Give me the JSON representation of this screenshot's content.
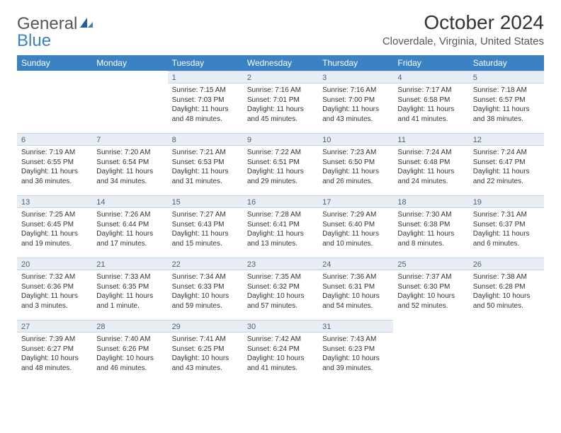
{
  "brand": {
    "word1": "General",
    "word2": "Blue"
  },
  "title": "October 2024",
  "location": "Cloverdale, Virginia, United States",
  "colors": {
    "header_bg": "#3b82c4",
    "header_text": "#ffffff",
    "daynum_bg": "#e8eef4",
    "daynum_text": "#4a6178",
    "body_text": "#333333",
    "page_bg": "#ffffff"
  },
  "day_names": [
    "Sunday",
    "Monday",
    "Tuesday",
    "Wednesday",
    "Thursday",
    "Friday",
    "Saturday"
  ],
  "weeks": [
    [
      null,
      null,
      {
        "n": "1",
        "sr": "Sunrise: 7:15 AM",
        "ss": "Sunset: 7:03 PM",
        "dl": "Daylight: 11 hours and 48 minutes."
      },
      {
        "n": "2",
        "sr": "Sunrise: 7:16 AM",
        "ss": "Sunset: 7:01 PM",
        "dl": "Daylight: 11 hours and 45 minutes."
      },
      {
        "n": "3",
        "sr": "Sunrise: 7:16 AM",
        "ss": "Sunset: 7:00 PM",
        "dl": "Daylight: 11 hours and 43 minutes."
      },
      {
        "n": "4",
        "sr": "Sunrise: 7:17 AM",
        "ss": "Sunset: 6:58 PM",
        "dl": "Daylight: 11 hours and 41 minutes."
      },
      {
        "n": "5",
        "sr": "Sunrise: 7:18 AM",
        "ss": "Sunset: 6:57 PM",
        "dl": "Daylight: 11 hours and 38 minutes."
      }
    ],
    [
      {
        "n": "6",
        "sr": "Sunrise: 7:19 AM",
        "ss": "Sunset: 6:55 PM",
        "dl": "Daylight: 11 hours and 36 minutes."
      },
      {
        "n": "7",
        "sr": "Sunrise: 7:20 AM",
        "ss": "Sunset: 6:54 PM",
        "dl": "Daylight: 11 hours and 34 minutes."
      },
      {
        "n": "8",
        "sr": "Sunrise: 7:21 AM",
        "ss": "Sunset: 6:53 PM",
        "dl": "Daylight: 11 hours and 31 minutes."
      },
      {
        "n": "9",
        "sr": "Sunrise: 7:22 AM",
        "ss": "Sunset: 6:51 PM",
        "dl": "Daylight: 11 hours and 29 minutes."
      },
      {
        "n": "10",
        "sr": "Sunrise: 7:23 AM",
        "ss": "Sunset: 6:50 PM",
        "dl": "Daylight: 11 hours and 26 minutes."
      },
      {
        "n": "11",
        "sr": "Sunrise: 7:24 AM",
        "ss": "Sunset: 6:48 PM",
        "dl": "Daylight: 11 hours and 24 minutes."
      },
      {
        "n": "12",
        "sr": "Sunrise: 7:24 AM",
        "ss": "Sunset: 6:47 PM",
        "dl": "Daylight: 11 hours and 22 minutes."
      }
    ],
    [
      {
        "n": "13",
        "sr": "Sunrise: 7:25 AM",
        "ss": "Sunset: 6:45 PM",
        "dl": "Daylight: 11 hours and 19 minutes."
      },
      {
        "n": "14",
        "sr": "Sunrise: 7:26 AM",
        "ss": "Sunset: 6:44 PM",
        "dl": "Daylight: 11 hours and 17 minutes."
      },
      {
        "n": "15",
        "sr": "Sunrise: 7:27 AM",
        "ss": "Sunset: 6:43 PM",
        "dl": "Daylight: 11 hours and 15 minutes."
      },
      {
        "n": "16",
        "sr": "Sunrise: 7:28 AM",
        "ss": "Sunset: 6:41 PM",
        "dl": "Daylight: 11 hours and 13 minutes."
      },
      {
        "n": "17",
        "sr": "Sunrise: 7:29 AM",
        "ss": "Sunset: 6:40 PM",
        "dl": "Daylight: 11 hours and 10 minutes."
      },
      {
        "n": "18",
        "sr": "Sunrise: 7:30 AM",
        "ss": "Sunset: 6:38 PM",
        "dl": "Daylight: 11 hours and 8 minutes."
      },
      {
        "n": "19",
        "sr": "Sunrise: 7:31 AM",
        "ss": "Sunset: 6:37 PM",
        "dl": "Daylight: 11 hours and 6 minutes."
      }
    ],
    [
      {
        "n": "20",
        "sr": "Sunrise: 7:32 AM",
        "ss": "Sunset: 6:36 PM",
        "dl": "Daylight: 11 hours and 3 minutes."
      },
      {
        "n": "21",
        "sr": "Sunrise: 7:33 AM",
        "ss": "Sunset: 6:35 PM",
        "dl": "Daylight: 11 hours and 1 minute."
      },
      {
        "n": "22",
        "sr": "Sunrise: 7:34 AM",
        "ss": "Sunset: 6:33 PM",
        "dl": "Daylight: 10 hours and 59 minutes."
      },
      {
        "n": "23",
        "sr": "Sunrise: 7:35 AM",
        "ss": "Sunset: 6:32 PM",
        "dl": "Daylight: 10 hours and 57 minutes."
      },
      {
        "n": "24",
        "sr": "Sunrise: 7:36 AM",
        "ss": "Sunset: 6:31 PM",
        "dl": "Daylight: 10 hours and 54 minutes."
      },
      {
        "n": "25",
        "sr": "Sunrise: 7:37 AM",
        "ss": "Sunset: 6:30 PM",
        "dl": "Daylight: 10 hours and 52 minutes."
      },
      {
        "n": "26",
        "sr": "Sunrise: 7:38 AM",
        "ss": "Sunset: 6:28 PM",
        "dl": "Daylight: 10 hours and 50 minutes."
      }
    ],
    [
      {
        "n": "27",
        "sr": "Sunrise: 7:39 AM",
        "ss": "Sunset: 6:27 PM",
        "dl": "Daylight: 10 hours and 48 minutes."
      },
      {
        "n": "28",
        "sr": "Sunrise: 7:40 AM",
        "ss": "Sunset: 6:26 PM",
        "dl": "Daylight: 10 hours and 46 minutes."
      },
      {
        "n": "29",
        "sr": "Sunrise: 7:41 AM",
        "ss": "Sunset: 6:25 PM",
        "dl": "Daylight: 10 hours and 43 minutes."
      },
      {
        "n": "30",
        "sr": "Sunrise: 7:42 AM",
        "ss": "Sunset: 6:24 PM",
        "dl": "Daylight: 10 hours and 41 minutes."
      },
      {
        "n": "31",
        "sr": "Sunrise: 7:43 AM",
        "ss": "Sunset: 6:23 PM",
        "dl": "Daylight: 10 hours and 39 minutes."
      },
      null,
      null
    ]
  ]
}
